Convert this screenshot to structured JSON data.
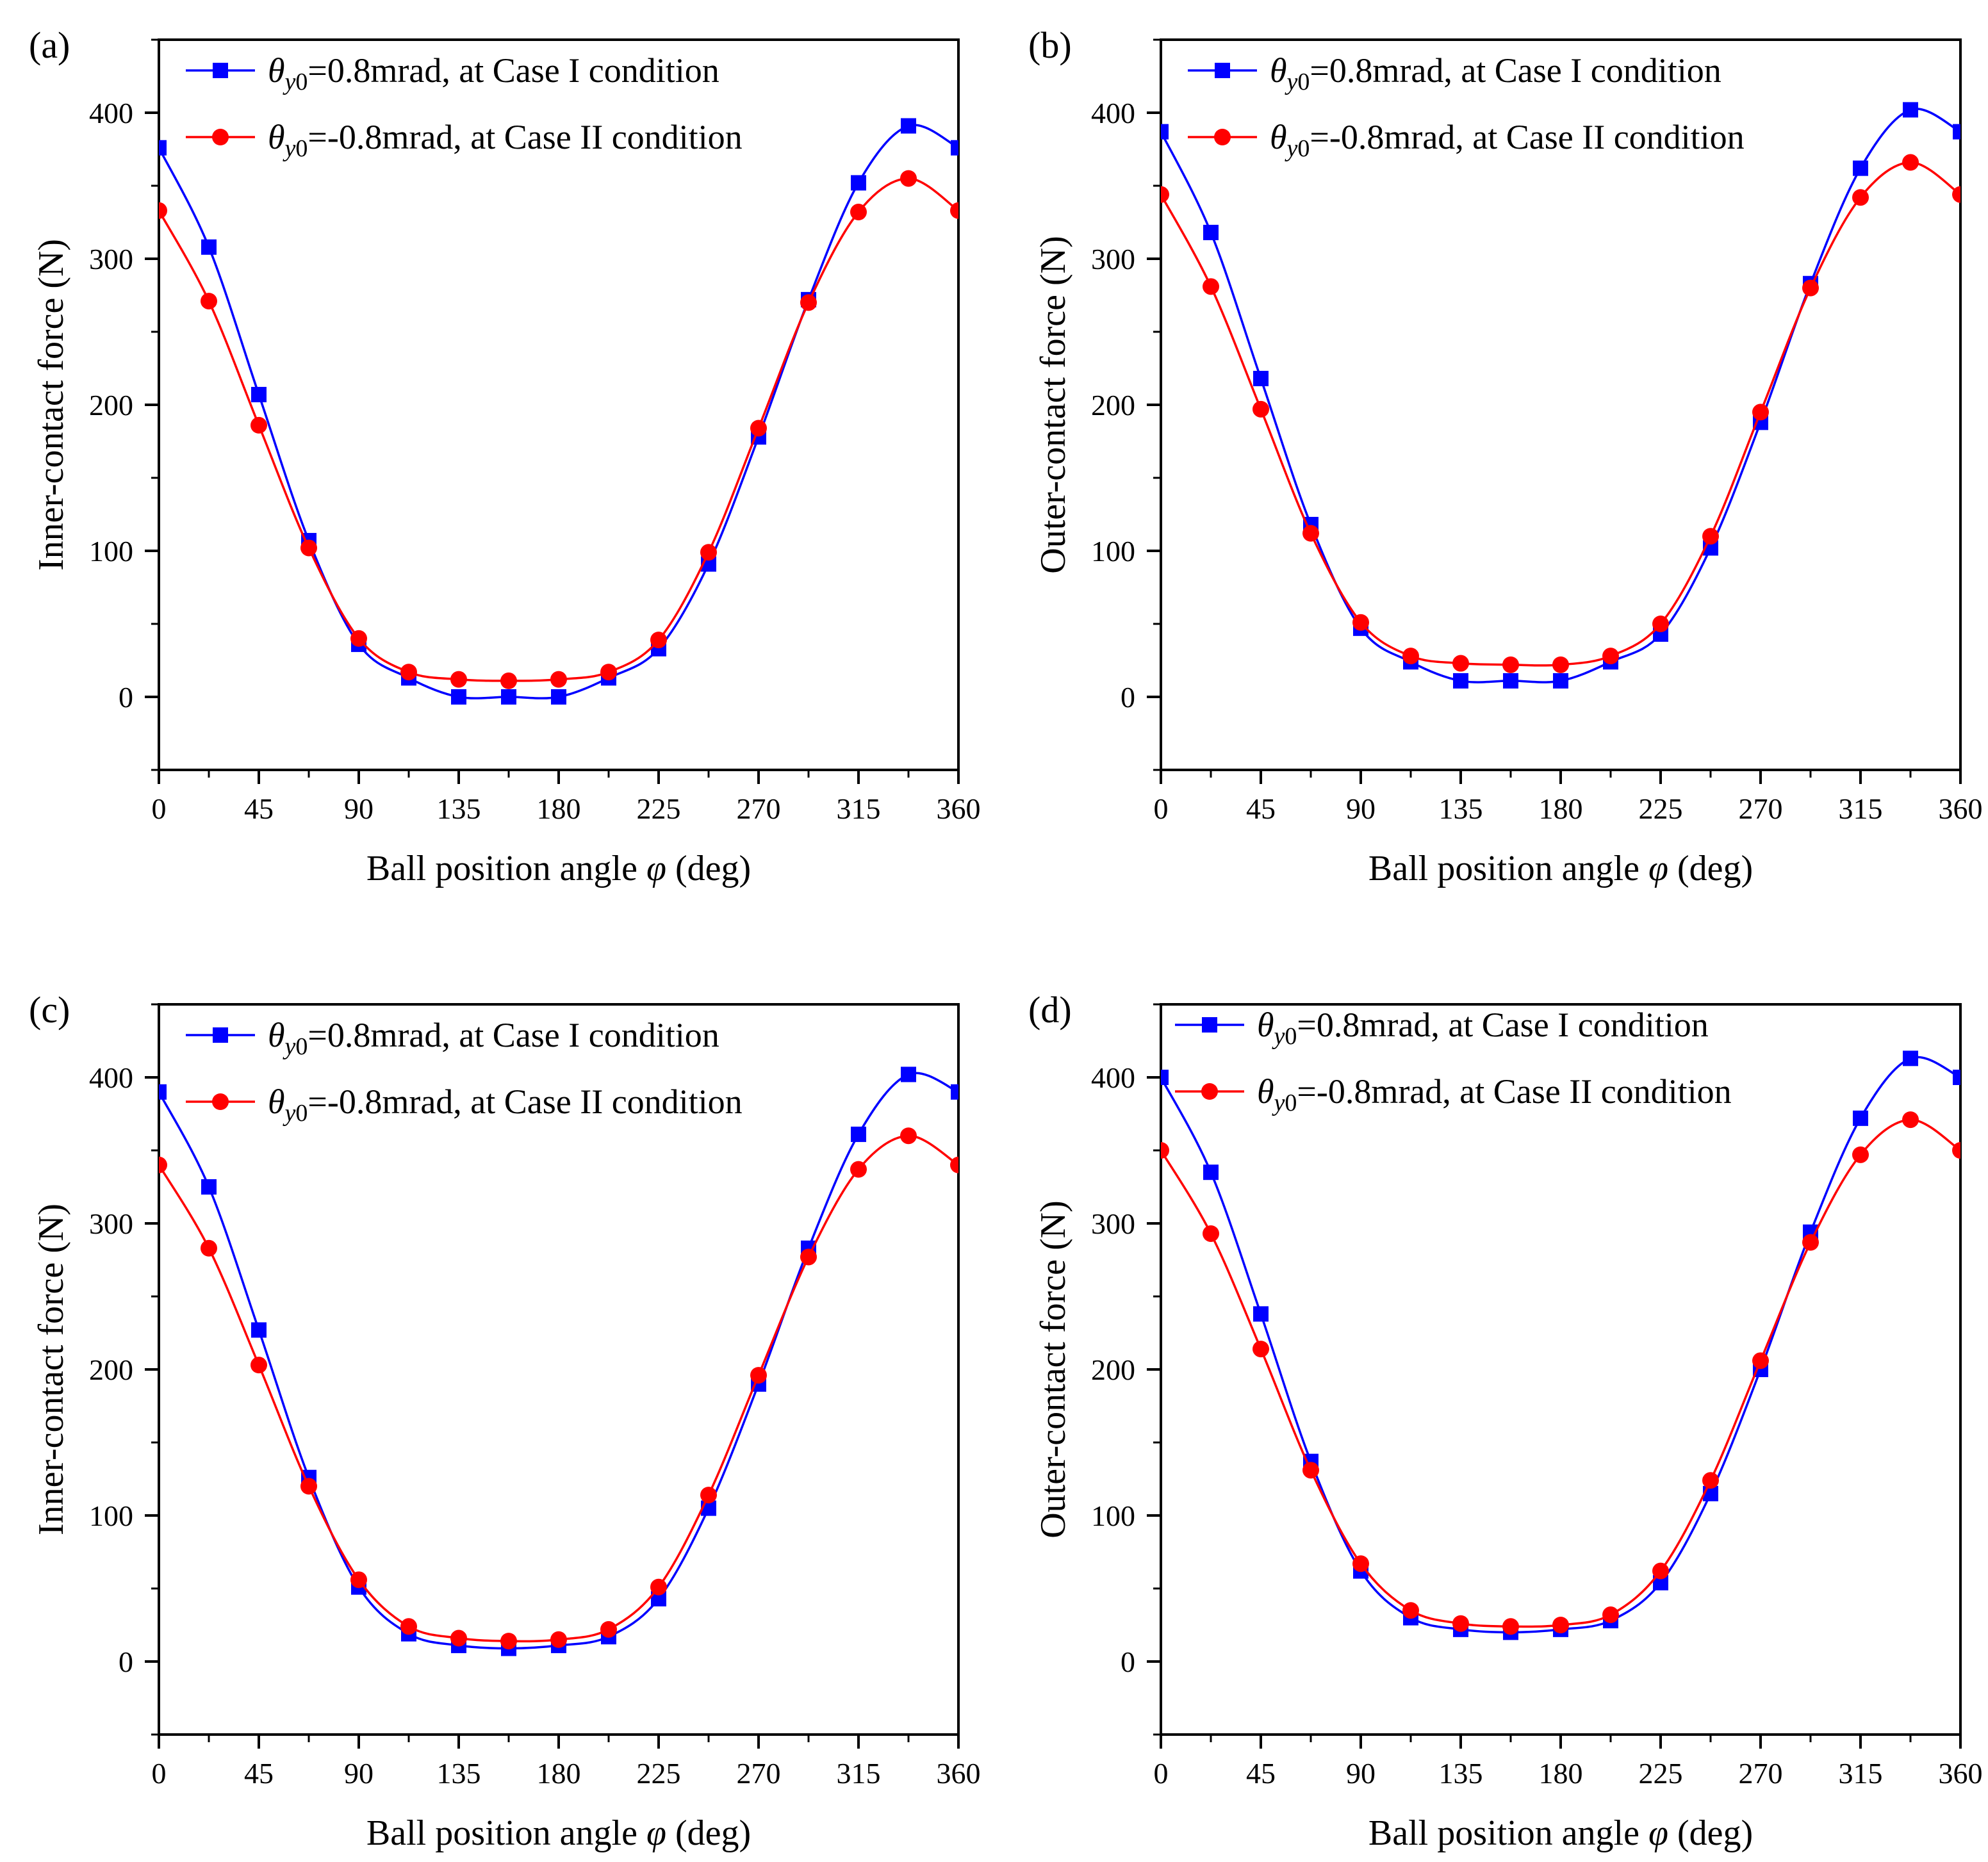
{
  "figure": {
    "series_colors": {
      "case1": "#0000ff",
      "case2": "#ff0000"
    }
  },
  "chart_data": [
    {
      "panel": "(a)",
      "type": "line",
      "xlabel_prefix": "Ball position angle ",
      "xlabel_symbol": "φ",
      "xlabel_suffix": " (deg)",
      "ylabel": "Inner-contact force (N)",
      "xlim": [
        0,
        360
      ],
      "ylim": [
        -50,
        450
      ],
      "xticks": [
        0,
        45,
        90,
        135,
        180,
        225,
        270,
        315,
        360
      ],
      "yticks": [
        0,
        100,
        200,
        300,
        400
      ],
      "legend_position": "top",
      "x": [
        0,
        22.5,
        45,
        67.5,
        90,
        112.5,
        135,
        157.5,
        180,
        202.5,
        225,
        247.5,
        270,
        292.5,
        315,
        337.5,
        360
      ],
      "series": [
        {
          "legend_value": "=0.8mrad, at Case I condition",
          "marker": "square",
          "color": "#0000ff",
          "values": [
            376,
            308,
            207,
            107,
            36,
            13,
            0,
            0,
            0,
            13,
            33,
            91,
            178,
            272,
            352,
            391,
            376
          ]
        },
        {
          "legend_value": "=-0.8mrad, at Case II condition",
          "marker": "circle",
          "color": "#ff0000",
          "values": [
            333,
            271,
            186,
            102,
            40,
            17,
            12,
            11,
            12,
            17,
            39,
            99,
            184,
            270,
            332,
            355,
            333
          ]
        }
      ]
    },
    {
      "panel": "(b)",
      "type": "line",
      "xlabel_prefix": "Ball position angle ",
      "xlabel_symbol": "φ",
      "xlabel_suffix": " (deg)",
      "ylabel": "Outer-contact force (N)",
      "xlim": [
        0,
        360
      ],
      "ylim": [
        -50,
        450
      ],
      "xticks": [
        0,
        45,
        90,
        135,
        180,
        225,
        270,
        315,
        360
      ],
      "yticks": [
        0,
        100,
        200,
        300,
        400
      ],
      "legend_position": "top",
      "x": [
        0,
        22.5,
        45,
        67.5,
        90,
        112.5,
        135,
        157.5,
        180,
        202.5,
        225,
        247.5,
        270,
        292.5,
        315,
        337.5,
        360
      ],
      "series": [
        {
          "legend_value": "=0.8mrad, at Case I condition",
          "marker": "square",
          "color": "#0000ff",
          "values": [
            387,
            318,
            218,
            118,
            47,
            24,
            11,
            11,
            11,
            24,
            43,
            102,
            188,
            283,
            362,
            402,
            387
          ]
        },
        {
          "legend_value": "=-0.8mrad, at Case II condition",
          "marker": "circle",
          "color": "#ff0000",
          "values": [
            344,
            281,
            197,
            112,
            51,
            28,
            23,
            22,
            22,
            28,
            50,
            110,
            195,
            280,
            342,
            366,
            344
          ]
        }
      ]
    },
    {
      "panel": "(c)",
      "type": "line",
      "xlabel_prefix": "Ball position angle ",
      "xlabel_symbol": "φ",
      "xlabel_suffix": " (deg)",
      "ylabel": "Inner-contact force (N)",
      "xlim": [
        0,
        360
      ],
      "ylim": [
        -50,
        450
      ],
      "xticks": [
        0,
        45,
        90,
        135,
        180,
        225,
        270,
        315,
        360
      ],
      "yticks": [
        0,
        100,
        200,
        300,
        400
      ],
      "legend_position": "top",
      "x": [
        0,
        22.5,
        45,
        67.5,
        90,
        112.5,
        135,
        157.5,
        180,
        202.5,
        225,
        247.5,
        270,
        292.5,
        315,
        337.5,
        360
      ],
      "series": [
        {
          "legend_value": "=0.8mrad, at Case I condition",
          "marker": "square",
          "color": "#0000ff",
          "values": [
            390,
            325,
            227,
            126,
            51,
            19,
            11,
            9,
            11,
            17,
            43,
            105,
            190,
            283,
            361,
            402,
            390
          ]
        },
        {
          "legend_value": "=-0.8mrad, at Case II condition",
          "marker": "circle",
          "color": "#ff0000",
          "values": [
            340,
            283,
            203,
            120,
            56,
            24,
            16,
            14,
            15,
            22,
            51,
            114,
            196,
            277,
            337,
            360,
            340
          ]
        }
      ]
    },
    {
      "panel": "(d)",
      "type": "line",
      "xlabel_prefix": "Ball position angle ",
      "xlabel_symbol": "φ",
      "xlabel_suffix": " (deg)",
      "ylabel": "Outer-contact force (N)",
      "xlim": [
        0,
        360
      ],
      "ylim": [
        -50,
        450
      ],
      "xticks": [
        0,
        45,
        90,
        135,
        180,
        225,
        270,
        315,
        360
      ],
      "yticks": [
        0,
        100,
        200,
        300,
        400
      ],
      "legend_position": "top",
      "x": [
        0,
        22.5,
        45,
        67.5,
        90,
        112.5,
        135,
        157.5,
        180,
        202.5,
        225,
        247.5,
        270,
        292.5,
        315,
        337.5,
        360
      ],
      "series": [
        {
          "legend_value": "=0.8mrad, at Case I condition",
          "marker": "square",
          "color": "#0000ff",
          "values": [
            400,
            335,
            238,
            137,
            62,
            30,
            22,
            20,
            22,
            28,
            54,
            115,
            200,
            294,
            372,
            413,
            400
          ]
        },
        {
          "legend_value": "=-0.8mrad, at Case II condition",
          "marker": "circle",
          "color": "#ff0000",
          "values": [
            350,
            293,
            214,
            131,
            67,
            35,
            26,
            24,
            25,
            32,
            62,
            124,
            206,
            287,
            347,
            371,
            350
          ]
        }
      ]
    }
  ]
}
